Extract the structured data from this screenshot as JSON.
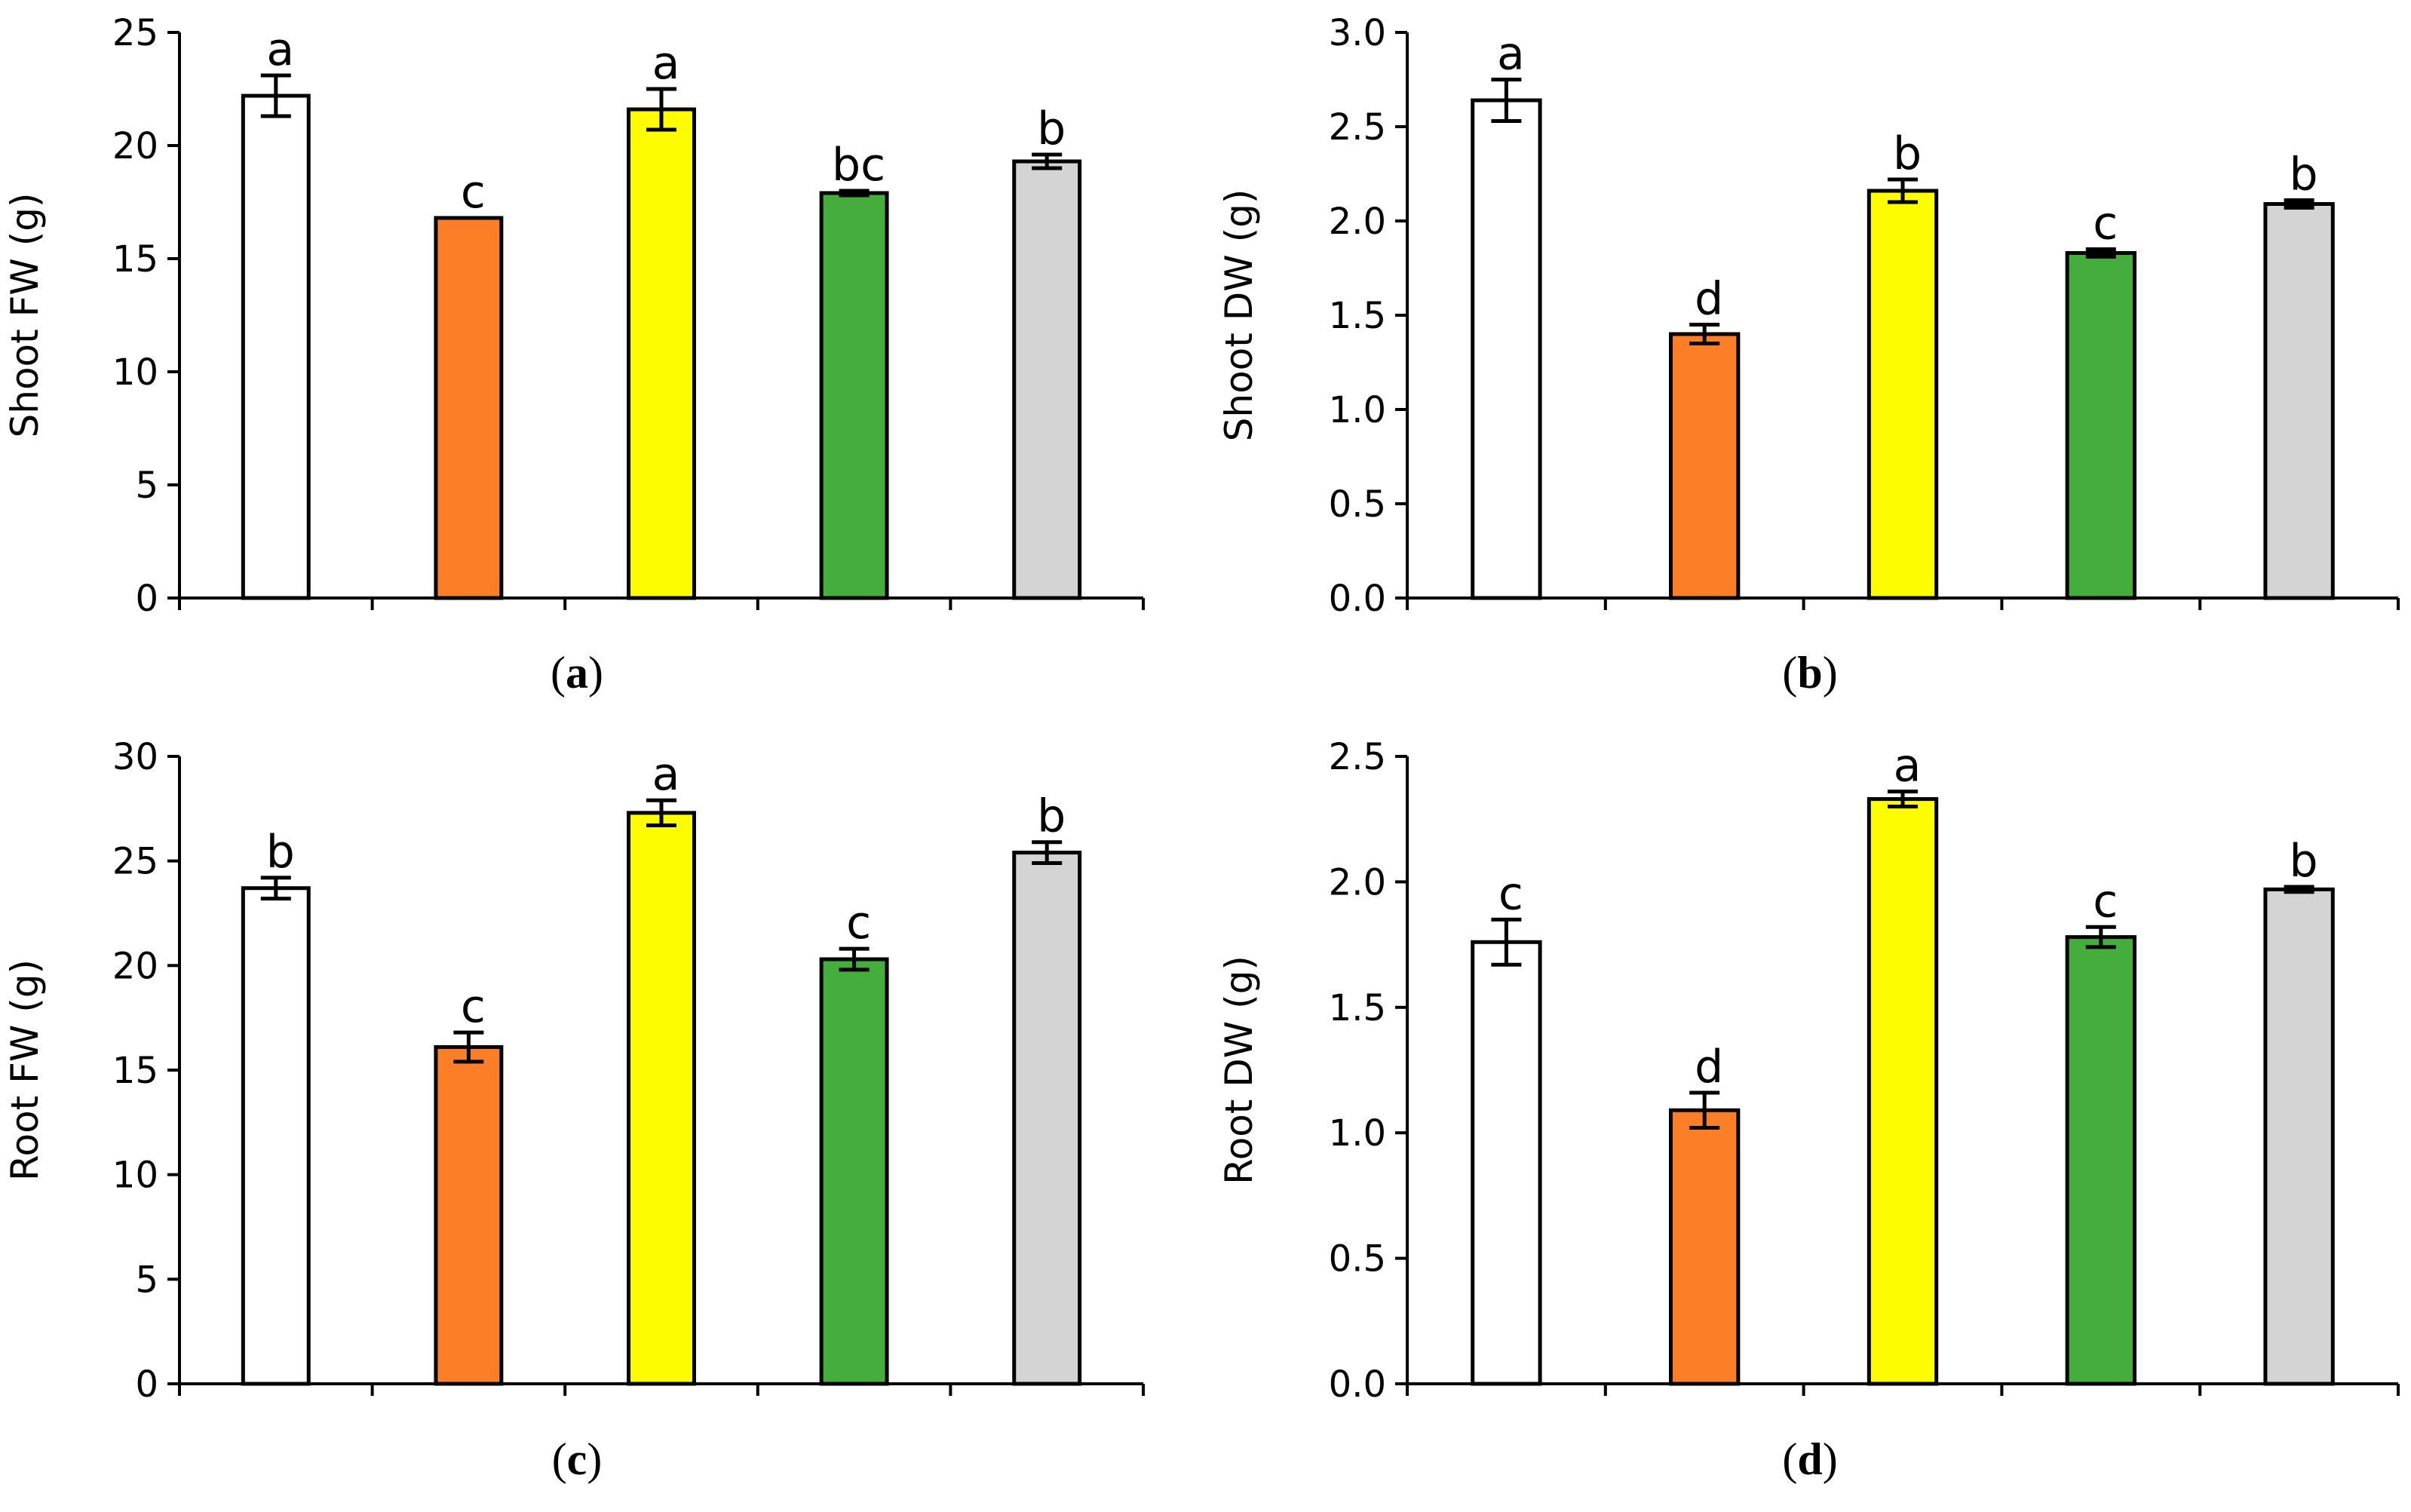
{
  "colors": {
    "treatments": [
      "#ffffff",
      "#fc7f28",
      "#fdfd00",
      "#44ad3b",
      "#d4d4d4"
    ],
    "stroke": "#000000"
  },
  "chart_data": [
    {
      "type": "bar",
      "panel": "a",
      "ylabel": "Shoot FW (g)",
      "ylim": [
        0,
        25
      ],
      "yticks": [
        "0",
        "5",
        "10",
        "15",
        "20",
        "25"
      ],
      "categories": [
        "",
        "",
        "",
        "",
        ""
      ],
      "values": [
        22.2,
        16.8,
        21.6,
        17.9,
        19.3
      ],
      "errors": [
        0.9,
        0.0,
        0.9,
        0.1,
        0.3
      ],
      "letters": [
        "a",
        "c",
        "a",
        "bc",
        "b"
      ]
    },
    {
      "type": "bar",
      "panel": "b",
      "ylabel": "Shoot DW (g)",
      "ylim": [
        0,
        3.0
      ],
      "yticks": [
        "0.0",
        "0.5",
        "1.0",
        "1.5",
        "2.0",
        "2.5",
        "3.0"
      ],
      "categories": [
        "",
        "",
        "",
        "",
        ""
      ],
      "values": [
        2.64,
        1.4,
        2.16,
        1.83,
        2.09
      ],
      "errors": [
        0.11,
        0.05,
        0.06,
        0.02,
        0.02
      ],
      "letters": [
        "a",
        "d",
        "b",
        "c",
        "b"
      ]
    },
    {
      "type": "bar",
      "panel": "c",
      "ylabel": "Root FW (g)",
      "ylim": [
        0,
        30
      ],
      "yticks": [
        "0",
        "5",
        "10",
        "15",
        "20",
        "25",
        "30"
      ],
      "categories": [
        "",
        "",
        "",
        "",
        ""
      ],
      "values": [
        23.7,
        16.1,
        27.3,
        20.3,
        25.4
      ],
      "errors": [
        0.5,
        0.7,
        0.6,
        0.5,
        0.5
      ],
      "letters": [
        "b",
        "c",
        "a",
        "c",
        "b"
      ]
    },
    {
      "type": "bar",
      "panel": "d",
      "ylabel": "Root DW (g)",
      "ylim": [
        0,
        2.5
      ],
      "yticks": [
        "0.0",
        "0.5",
        "1.0",
        "1.5",
        "2.0",
        "2.5"
      ],
      "categories": [
        "",
        "",
        "",
        "",
        ""
      ],
      "values": [
        1.76,
        1.09,
        2.33,
        1.78,
        1.97
      ],
      "errors": [
        0.09,
        0.07,
        0.03,
        0.04,
        0.01
      ],
      "letters": [
        "c",
        "d",
        "a",
        "c",
        "b"
      ]
    }
  ]
}
